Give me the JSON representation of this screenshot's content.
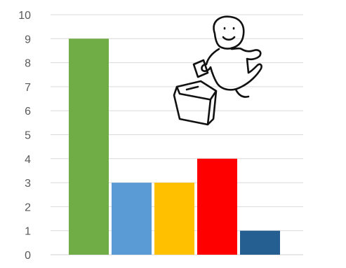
{
  "chart_data": {
    "type": "bar",
    "categories": [
      "",
      "",
      "",
      "",
      ""
    ],
    "values": [
      9,
      3,
      3,
      4,
      1
    ],
    "colors": [
      "#70ad47",
      "#5b9bd5",
      "#ffc000",
      "#ff0000",
      "#255e91"
    ],
    "title": "",
    "xlabel": "",
    "ylabel": "",
    "ylim": [
      0,
      10
    ],
    "yticks": [
      "0",
      "1",
      "2",
      "3",
      "4",
      "5",
      "6",
      "7",
      "8",
      "9",
      "10"
    ],
    "grid": true,
    "legend": "none"
  },
  "illustration": {
    "name": "person-casting-ballot-doodle",
    "icon": "voting-person-icon"
  }
}
